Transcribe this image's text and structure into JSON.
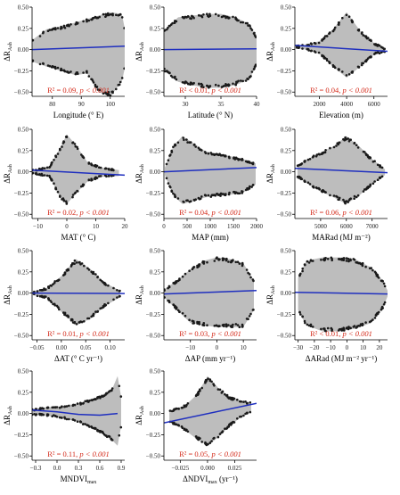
{
  "figure": {
    "point_color": "#1a1a1a",
    "fill_color": "#bdbdbd",
    "fit_color": "#1f2fbf",
    "stat_color": "#d42a1a",
    "panels": [
      {
        "id": "longitude",
        "xlabel": "Longitude (° E)",
        "ylabel": "ΔR",
        "ylabel_sub": "Ash",
        "xlim": [
          73,
          105
        ],
        "ylim": [
          -0.55,
          0.5
        ],
        "xticks": [
          80,
          90,
          100
        ],
        "xticklabels": [
          "80",
          "90",
          "100"
        ],
        "yticks": [
          -0.5,
          -0.25,
          0,
          0.25,
          0.5
        ],
        "yticklabels": [
          "−0.50",
          "−0.25",
          "0.00",
          "0.25",
          "0.50"
        ],
        "fit": [
          [
            73,
            0.0
          ],
          [
            105,
            0.04
          ]
        ],
        "stat_r2": "R² = 0.09,",
        "stat_p": "p < 0.001",
        "envelope": [
          [
            73,
            0.11,
            -0.14
          ],
          [
            78,
            0.24,
            -0.2
          ],
          [
            83,
            0.27,
            -0.25
          ],
          [
            88,
            0.32,
            -0.3
          ],
          [
            92,
            0.36,
            -0.28
          ],
          [
            96,
            0.4,
            -0.5
          ],
          [
            100,
            0.44,
            -0.55
          ],
          [
            104,
            0.42,
            -0.38
          ],
          [
            105,
            0.25,
            -0.22
          ]
        ]
      },
      {
        "id": "latitude",
        "xlabel": "Latitude (° N)",
        "ylabel": "ΔR",
        "ylabel_sub": "Ash",
        "xlim": [
          27,
          40
        ],
        "ylim": [
          -0.55,
          0.5
        ],
        "xticks": [
          30,
          35,
          40
        ],
        "xticklabels": [
          "30",
          "35",
          "40"
        ],
        "yticks": [
          -0.5,
          -0.25,
          0,
          0.25,
          0.5
        ],
        "yticklabels": [
          "−0.50",
          "−0.25",
          "0.00",
          "0.25",
          "0.50"
        ],
        "fit": [
          [
            27,
            0.0
          ],
          [
            40,
            0.01
          ]
        ],
        "stat_r2": "R² < 0.01,",
        "stat_p": "p < 0.001",
        "envelope": [
          [
            27,
            0.22,
            -0.25
          ],
          [
            29,
            0.38,
            -0.38
          ],
          [
            31,
            0.4,
            -0.42
          ],
          [
            33,
            0.42,
            -0.45
          ],
          [
            35,
            0.42,
            -0.45
          ],
          [
            37,
            0.38,
            -0.42
          ],
          [
            39,
            0.3,
            -0.35
          ],
          [
            40,
            0.15,
            -0.18
          ]
        ]
      },
      {
        "id": "elevation",
        "xlabel": "Elevation (m)",
        "ylabel": "ΔR",
        "ylabel_sub": "Ash",
        "xlim": [
          200,
          7000
        ],
        "ylim": [
          -0.55,
          0.5
        ],
        "xticks": [
          2000,
          4000,
          6000
        ],
        "xticklabels": [
          "2000",
          "4000",
          "6000"
        ],
        "yticks": [
          -0.5,
          -0.25,
          0,
          0.25,
          0.5
        ],
        "yticklabels": [
          "−0.50",
          "−0.25",
          "0.00",
          "0.25",
          "0.50"
        ],
        "fit": [
          [
            200,
            0.05
          ],
          [
            7000,
            -0.02
          ]
        ],
        "stat_r2": "R² = 0.04,",
        "stat_p": "p < 0.001",
        "envelope": [
          [
            300,
            0.05,
            0.02
          ],
          [
            1000,
            0.06,
            0.0
          ],
          [
            2000,
            0.1,
            -0.05
          ],
          [
            3000,
            0.24,
            -0.2
          ],
          [
            4000,
            0.44,
            -0.33
          ],
          [
            5000,
            0.22,
            -0.2
          ],
          [
            6000,
            0.08,
            -0.06
          ],
          [
            6800,
            0.02,
            -0.03
          ]
        ]
      },
      {
        "id": "mat",
        "xlabel": "MAT (° C)",
        "ylabel": "ΔR",
        "ylabel_sub": "Ash",
        "xlim": [
          -12,
          20
        ],
        "ylim": [
          -0.55,
          0.5
        ],
        "xticks": [
          -10,
          0,
          10,
          20
        ],
        "xticklabels": [
          "−10",
          "0",
          "10",
          "20"
        ],
        "yticks": [
          -0.5,
          -0.25,
          0,
          0.25,
          0.5
        ],
        "yticklabels": [
          "−0.50",
          "−0.25",
          "0.00",
          "0.25",
          "0.50"
        ],
        "fit": [
          [
            -12,
            0.02
          ],
          [
            20,
            -0.04
          ]
        ],
        "stat_r2": "R² = 0.02,",
        "stat_p": "p < 0.001",
        "envelope": [
          [
            -12,
            0.02,
            -0.02
          ],
          [
            -6,
            0.06,
            -0.06
          ],
          [
            -2,
            0.3,
            -0.32
          ],
          [
            0,
            0.44,
            -0.38
          ],
          [
            3,
            0.32,
            -0.26
          ],
          [
            7,
            0.12,
            -0.12
          ],
          [
            12,
            0.05,
            -0.06
          ],
          [
            18,
            0.02,
            -0.05
          ]
        ]
      },
      {
        "id": "map",
        "xlabel": "MAP (mm)",
        "ylabel": "ΔR",
        "ylabel_sub": "Ash",
        "xlim": [
          0,
          2000
        ],
        "ylim": [
          -0.55,
          0.5
        ],
        "xticks": [
          0,
          500,
          1000,
          1500,
          2000
        ],
        "xticklabels": [
          "0",
          "500",
          "1000",
          "1500",
          "2000"
        ],
        "yticks": [
          -0.5,
          -0.25,
          0,
          0.25,
          0.5
        ],
        "yticklabels": [
          "−0.50",
          "−0.25",
          "0.00",
          "0.25",
          "0.50"
        ],
        "fit": [
          [
            0,
            0.0
          ],
          [
            2000,
            0.05
          ]
        ],
        "stat_r2": "R² = 0.04,",
        "stat_p": "p < 0.001",
        "envelope": [
          [
            20,
            0.05,
            -0.04
          ],
          [
            200,
            0.3,
            -0.28
          ],
          [
            400,
            0.42,
            -0.38
          ],
          [
            600,
            0.35,
            -0.35
          ],
          [
            900,
            0.24,
            -0.3
          ],
          [
            1300,
            0.2,
            -0.28
          ],
          [
            1700,
            0.15,
            -0.25
          ],
          [
            1980,
            0.1,
            -0.15
          ]
        ]
      },
      {
        "id": "marad",
        "xlabel": "MARad (MJ m⁻²)",
        "ylabel": "ΔR",
        "ylabel_sub": "Ash",
        "xlim": [
          4000,
          7600
        ],
        "ylim": [
          -0.55,
          0.5
        ],
        "xticks": [
          5000,
          6000,
          7000
        ],
        "xticklabels": [
          "5000",
          "6000",
          "7000"
        ],
        "yticks": [
          -0.5,
          -0.25,
          0,
          0.25,
          0.5
        ],
        "yticklabels": [
          "−0.50",
          "−0.25",
          "0.00",
          "0.25",
          "0.50"
        ],
        "fit": [
          [
            4000,
            0.04
          ],
          [
            7600,
            -0.01
          ]
        ],
        "stat_r2": "R² = 0.06,",
        "stat_p": "p < 0.001",
        "envelope": [
          [
            4100,
            0.08,
            -0.06
          ],
          [
            4800,
            0.2,
            -0.2
          ],
          [
            5500,
            0.3,
            -0.3
          ],
          [
            6000,
            0.42,
            -0.38
          ],
          [
            6500,
            0.3,
            -0.28
          ],
          [
            7000,
            0.15,
            -0.15
          ],
          [
            7500,
            0.03,
            -0.04
          ]
        ]
      },
      {
        "id": "dat",
        "xlabel": "ΔAT (° C yr⁻¹)",
        "ylabel": "ΔR",
        "ylabel_sub": "Ash",
        "xlim": [
          -0.06,
          0.13
        ],
        "ylim": [
          -0.55,
          0.5
        ],
        "xticks": [
          -0.05,
          0,
          0.05,
          0.1
        ],
        "xticklabels": [
          "−0.05",
          "0.00",
          "0.05",
          "0.10"
        ],
        "yticks": [
          -0.5,
          -0.25,
          0,
          0.25,
          0.5
        ],
        "yticklabels": [
          "−0.50",
          "−0.25",
          "0.00",
          "0.25",
          "0.50"
        ],
        "fit": [
          [
            -0.06,
            0.0
          ],
          [
            0.13,
            -0.005
          ]
        ],
        "stat_r2": "R² = 0.01,",
        "stat_p": "p < 0.001",
        "envelope": [
          [
            -0.06,
            0.02,
            -0.02
          ],
          [
            -0.03,
            0.06,
            -0.06
          ],
          [
            0.0,
            0.2,
            -0.22
          ],
          [
            0.03,
            0.4,
            -0.38
          ],
          [
            0.06,
            0.28,
            -0.3
          ],
          [
            0.09,
            0.12,
            -0.15
          ],
          [
            0.12,
            0.03,
            -0.05
          ]
        ]
      },
      {
        "id": "dap",
        "xlabel": "ΔAP (mm yr⁻¹)",
        "ylabel": "ΔR",
        "ylabel_sub": "Ash",
        "xlim": [
          -20,
          15
        ],
        "ylim": [
          -0.55,
          0.5
        ],
        "xticks": [
          -10,
          0,
          10
        ],
        "xticklabels": [
          "−10",
          "0",
          "10"
        ],
        "yticks": [
          -0.5,
          -0.25,
          0,
          0.25,
          0.5
        ],
        "yticklabels": [
          "−0.50",
          "−0.25",
          "0.00",
          "0.25",
          "0.50"
        ],
        "fit": [
          [
            -20,
            -0.01
          ],
          [
            15,
            0.03
          ]
        ],
        "stat_r2": "R² = 0.03,",
        "stat_p": "p < 0.001",
        "envelope": [
          [
            -20,
            0.04,
            -0.05
          ],
          [
            -15,
            0.15,
            -0.2
          ],
          [
            -10,
            0.28,
            -0.35
          ],
          [
            -5,
            0.38,
            -0.38
          ],
          [
            0,
            0.42,
            -0.4
          ],
          [
            5,
            0.4,
            -0.4
          ],
          [
            10,
            0.35,
            -0.4
          ],
          [
            14,
            0.15,
            -0.2
          ]
        ]
      },
      {
        "id": "darad",
        "xlabel": "ΔARad (MJ m⁻² yr⁻¹)",
        "ylabel": "ΔR",
        "ylabel_sub": "Ash",
        "xlim": [
          -32,
          25
        ],
        "ylim": [
          -0.55,
          0.5
        ],
        "xticks": [
          -30,
          -20,
          -10,
          0,
          10,
          20
        ],
        "xticklabels": [
          "−30",
          "−20",
          "−10",
          "0",
          "10",
          "20"
        ],
        "yticks": [
          -0.5,
          -0.25,
          0,
          0.25,
          0.5
        ],
        "yticklabels": [
          "−0.50",
          "−0.25",
          "0.00",
          "0.25",
          "0.50"
        ],
        "fit": [
          [
            -32,
            0.01
          ],
          [
            25,
            -0.01
          ]
        ],
        "stat_r2": "R² < 0.01,",
        "stat_p": "p < 0.001",
        "envelope": [
          [
            -30,
            0.18,
            -0.2
          ],
          [
            -25,
            0.38,
            -0.38
          ],
          [
            -15,
            0.42,
            -0.45
          ],
          [
            -5,
            0.42,
            -0.45
          ],
          [
            5,
            0.4,
            -0.42
          ],
          [
            15,
            0.3,
            -0.35
          ],
          [
            22,
            0.15,
            -0.18
          ],
          [
            25,
            0.03,
            -0.04
          ]
        ]
      },
      {
        "id": "mndvi",
        "xlabel": "MNDVI",
        "xlabel_sub": "max",
        "ylabel": "ΔR",
        "ylabel_sub": "Ash",
        "xlim": [
          -0.35,
          0.95
        ],
        "ylim": [
          -0.55,
          0.5
        ],
        "xticks": [
          -0.3,
          0,
          0.3,
          0.6,
          0.9
        ],
        "xticklabels": [
          "−0.3",
          "0.0",
          "0.3",
          "0.6",
          "0.9"
        ],
        "yticks": [
          -0.5,
          -0.25,
          0,
          0.25,
          0.5
        ],
        "yticklabels": [
          "−0.50",
          "−0.25",
          "0.00",
          "0.25",
          "0.50"
        ],
        "fit": [
          [
            -0.35,
            0.04
          ],
          [
            0.0,
            0.02
          ],
          [
            0.3,
            -0.01
          ],
          [
            0.6,
            -0.02
          ],
          [
            0.85,
            0.0
          ]
        ],
        "stat_r2": "R² = 0.11,",
        "stat_p": "p < 0.001",
        "envelope": [
          [
            -0.35,
            0.05,
            -0.02
          ],
          [
            -0.2,
            0.07,
            -0.02
          ],
          [
            0.0,
            0.08,
            -0.04
          ],
          [
            0.3,
            0.12,
            -0.1
          ],
          [
            0.6,
            0.2,
            -0.22
          ],
          [
            0.78,
            0.3,
            -0.32
          ],
          [
            0.85,
            0.44,
            -0.38
          ],
          [
            0.9,
            0.2,
            -0.15
          ]
        ]
      },
      {
        "id": "dndvi",
        "xlabel": "ΔNDVI",
        "xlabel_sub": "max",
        "xlabel_tail": " (yr⁻¹)",
        "ylabel": "ΔR",
        "ylabel_sub": "Ash",
        "xlim": [
          -0.04,
          0.045
        ],
        "ylim": [
          -0.55,
          0.5
        ],
        "xticks": [
          -0.025,
          0,
          0.025
        ],
        "xticklabels": [
          "−0.025",
          "0.000",
          "0.025"
        ],
        "yticks": [
          -0.5,
          -0.25,
          0,
          0.25,
          0.5
        ],
        "yticklabels": [
          "−0.50",
          "−0.25",
          "0.00",
          "0.25",
          "0.50"
        ],
        "fit": [
          [
            -0.04,
            -0.11
          ],
          [
            0.045,
            0.12
          ]
        ],
        "stat_r2": "R² = 0.05,",
        "stat_p": "p < 0.001",
        "envelope": [
          [
            -0.035,
            0.03,
            -0.1
          ],
          [
            -0.02,
            0.1,
            -0.2
          ],
          [
            -0.01,
            0.22,
            -0.3
          ],
          [
            0.0,
            0.44,
            -0.38
          ],
          [
            0.01,
            0.3,
            -0.28
          ],
          [
            0.02,
            0.2,
            -0.15
          ],
          [
            0.03,
            0.15,
            -0.05
          ],
          [
            0.04,
            0.13,
            0.02
          ]
        ]
      }
    ]
  }
}
